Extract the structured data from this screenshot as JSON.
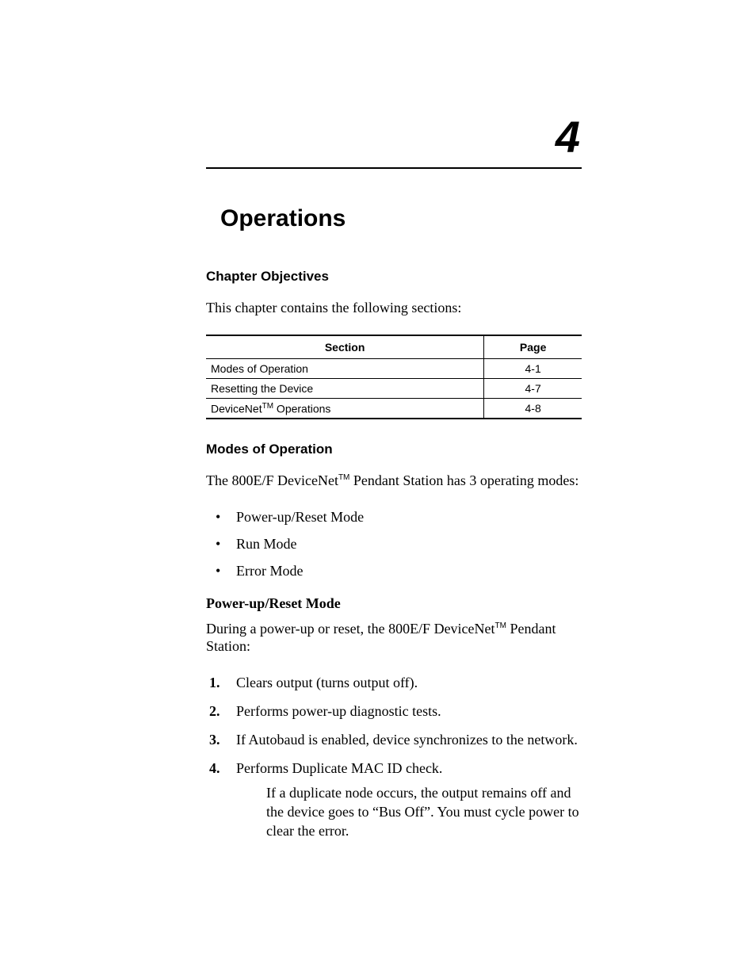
{
  "colors": {
    "text": "#000000",
    "background": "#ffffff",
    "rule": "#000000"
  },
  "typography": {
    "chapter_number_font": "Arial",
    "chapter_number_size_pt": 42,
    "chapter_title_font": "Arial",
    "chapter_title_size_pt": 22,
    "section_heading_font": "Arial",
    "section_heading_size_pt": 13,
    "body_font": "Times New Roman",
    "body_size_pt": 13,
    "table_font": "Arial",
    "table_size_pt": 10
  },
  "chapter": {
    "number": "4",
    "title": "Operations"
  },
  "objectives": {
    "heading": "Chapter Objectives",
    "intro": "This chapter contains the following sections:"
  },
  "table": {
    "headers": {
      "section": "Section",
      "page": "Page"
    },
    "rows": [
      {
        "section": "Modes of Operation",
        "page": "4-1"
      },
      {
        "section": "Resetting the Device",
        "page": "4-7"
      },
      {
        "section_prefix": "DeviceNet",
        "section_tm": "TM",
        "section_suffix": " Operations",
        "page": "4-8"
      }
    ]
  },
  "modes": {
    "heading": "Modes of Operation",
    "intro_prefix": "The 800E/F DeviceNet",
    "intro_tm": "TM",
    "intro_suffix": " Pendant Station has 3 operating modes:",
    "items": [
      "Power-up/Reset Mode",
      "Run Mode",
      "Error Mode"
    ]
  },
  "powerup": {
    "heading": "Power-up/Reset Mode",
    "intro_prefix": "During a power-up or reset, the 800E/F DeviceNet",
    "intro_tm": "TM",
    "intro_suffix": " Pendant Station:",
    "steps": [
      "Clears output (turns output off).",
      "Performs power-up diagnostic tests.",
      "If Autobaud is enabled, device synchronizes to the network.",
      "Performs Duplicate MAC ID check."
    ],
    "continuation": "If a duplicate node occurs, the output remains off and the device goes to “Bus Off”. You must cycle power to clear the error."
  }
}
